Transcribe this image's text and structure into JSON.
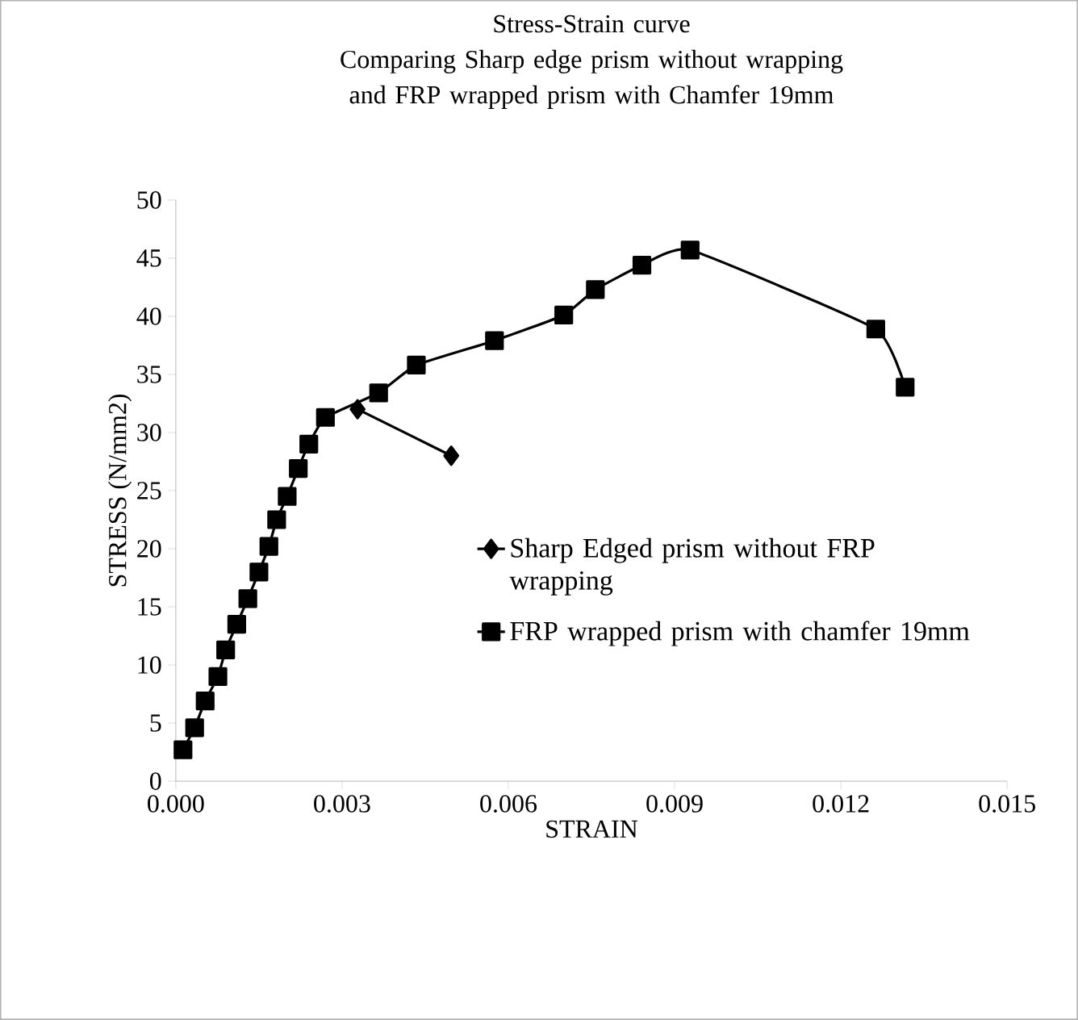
{
  "chart_data": {
    "type": "line",
    "title": "Stress-Strain curve",
    "subtitle": "Comparing Sharp edge prism without wrapping and FRP wrapped prism with Chamfer 19mm",
    "xlabel": "STRAIN",
    "ylabel": "STRESS (N/mm2)",
    "xlim": [
      0,
      0.015
    ],
    "xticks": [
      {
        "value": 0,
        "label": "0.000"
      },
      {
        "value": 0.003,
        "label": "0.003"
      },
      {
        "value": 0.006,
        "label": "0.006"
      },
      {
        "value": 0.009,
        "label": "0.009"
      },
      {
        "value": 0.012,
        "label": "0.012"
      },
      {
        "value": 0.015,
        "label": "0.015"
      }
    ],
    "ylim": [
      0,
      50
    ],
    "yticks": [
      0,
      5,
      10,
      15,
      20,
      25,
      30,
      35,
      40,
      45,
      50
    ],
    "grid": false,
    "legend": "right",
    "series": [
      {
        "name": "Sharp Edged prism without FRP wrapping",
        "color": "#000000",
        "marker": "diamond",
        "x": [
          0.00328,
          0.00497
        ],
        "values": [
          32.0,
          28.0
        ]
      },
      {
        "name": "FRP wrapped prism with chamfer 19mm",
        "color": "#000000",
        "marker": "square",
        "x": [
          0.00013,
          0.00034,
          0.00053,
          0.00076,
          0.0009,
          0.0011,
          0.0013,
          0.0015,
          0.00168,
          0.00182,
          0.00201,
          0.00221,
          0.0024,
          0.0027,
          0.00366,
          0.00434,
          0.00575,
          0.007,
          0.00757,
          0.00841,
          0.00928,
          0.01263,
          0.01316
        ],
        "values": [
          2.7,
          4.6,
          6.9,
          9.0,
          11.3,
          13.5,
          15.7,
          18.0,
          20.2,
          22.5,
          24.5,
          26.9,
          29.0,
          31.3,
          33.4,
          35.8,
          37.9,
          40.1,
          42.3,
          44.4,
          45.7,
          38.9,
          33.9
        ]
      }
    ]
  }
}
